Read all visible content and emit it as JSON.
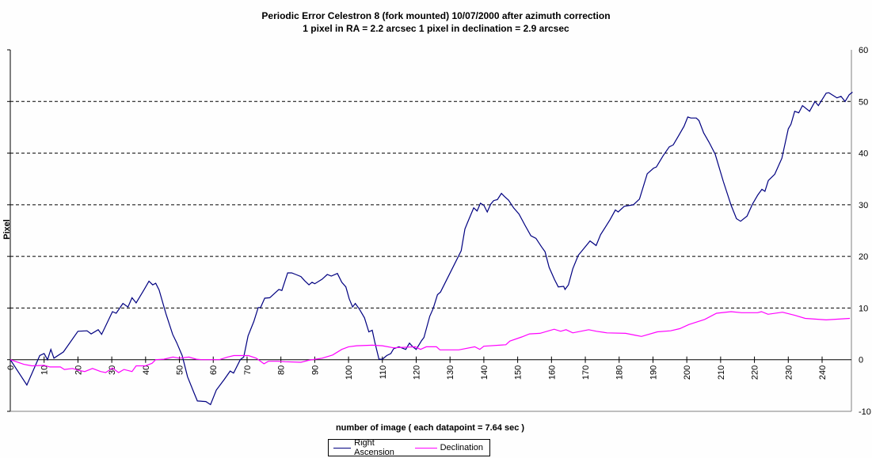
{
  "chart_data": {
    "type": "line",
    "title": "Periodic Error Celestron 8 (fork mounted) 10/07/2000 after azimuth correction",
    "subtitle": "1 pixel in RA = 2.2 arcsec   1 pixel in declination = 2.9 arcsec",
    "xlabel": "number of image ( each datapoint = 7.64 sec )",
    "ylabel": "Pixel",
    "xlim": [
      0,
      249
    ],
    "ylim": [
      -10,
      60
    ],
    "xticks": [
      0,
      10,
      20,
      30,
      40,
      50,
      60,
      70,
      80,
      90,
      100,
      110,
      120,
      130,
      140,
      150,
      160,
      170,
      180,
      190,
      200,
      210,
      220,
      230,
      240
    ],
    "yticks": [
      -10,
      0,
      10,
      20,
      30,
      40,
      50,
      60
    ],
    "grid": "horizontal dashed",
    "legend": "bottom-center",
    "series": [
      {
        "name": "Right Ascension",
        "color": "#000080",
        "x": [
          0,
          4.9,
          8.7,
          10,
          11,
          12,
          12.9,
          15.7,
          20,
          22.7,
          23.9,
          26,
          27,
          30.2,
          31.3,
          33.3,
          34.8,
          36,
          37.2,
          39.5,
          41,
          42.1,
          43,
          44,
          46,
          48,
          49.2,
          50.8,
          52.4,
          54.3,
          55.3,
          57.8,
          59.2,
          60.9,
          63.3,
          65,
          66,
          68,
          69,
          70.3,
          72,
          73.3,
          74,
          75.2,
          76.7,
          79.4,
          80.3,
          82,
          83.2,
          84.4,
          85.9,
          87,
          88.3,
          89.2,
          90,
          92.2,
          93.7,
          94.9,
          96.7,
          98,
          99.2,
          100.2,
          101.2,
          102,
          103.2,
          104.7,
          106,
          107,
          107.8,
          109,
          110,
          111.3,
          112.5,
          113.3,
          114.9,
          116.9,
          118,
          119,
          120,
          121.6,
          122.3,
          124,
          125,
          126.3,
          127.2,
          130.4,
          133.3,
          134.4,
          135.2,
          137,
          138,
          139,
          140,
          141,
          142,
          142.9,
          144,
          145.2,
          146.1,
          147.3,
          148.8,
          150.4,
          152.2,
          153.9,
          155.4,
          157,
          158.1,
          159.3,
          160.9,
          162,
          163.6,
          164,
          165,
          166.3,
          167.9,
          169.4,
          171.4,
          173.2,
          174.5,
          177.3,
          178.9,
          179.7,
          181.5,
          184.2,
          186,
          188.3,
          190.2,
          191,
          193,
          194.8,
          196,
          197.6,
          199.2,
          200.3,
          201.2,
          202.8,
          203.6,
          205,
          206.6,
          208.4,
          210.8,
          213.1,
          214.7,
          215.9,
          217.8,
          219.4,
          221,
          222.2,
          223.1,
          224.1,
          226,
          228.1,
          230,
          230.8,
          231.9,
          233.1,
          234.2,
          236.3,
          237.9,
          238.9,
          241.2,
          242,
          244.4,
          245.6,
          246.8,
          248,
          249
        ],
        "y": [
          0,
          -4.9,
          0.8,
          1.2,
          0,
          2,
          0.3,
          1.5,
          5.5,
          5.6,
          5,
          5.8,
          4.9,
          9.3,
          9,
          10.9,
          10.2,
          12,
          11,
          13.5,
          15.2,
          14.5,
          14.8,
          13.5,
          8.9,
          4.9,
          3.3,
          0.8,
          -3.3,
          -6.4,
          -8,
          -8.1,
          -8.7,
          -5.9,
          -3.8,
          -2.2,
          -2.6,
          0,
          0.5,
          4.6,
          7.4,
          10.1,
          10.1,
          11.9,
          12,
          13.6,
          13.4,
          16.8,
          16.8,
          16.5,
          16.1,
          15.3,
          14.5,
          15,
          14.7,
          15.6,
          16.5,
          16.2,
          16.7,
          15,
          14.1,
          11.8,
          10.2,
          10.9,
          9.8,
          8.1,
          5.4,
          5.7,
          3.3,
          0.1,
          0.1,
          0.8,
          1.2,
          2.1,
          2.5,
          2,
          3.2,
          2.5,
          2,
          3.7,
          4.3,
          8.4,
          9.9,
          12.6,
          13.1,
          17.3,
          21.1,
          25.3,
          26.6,
          29.4,
          28.8,
          30.3,
          29.9,
          28.6,
          30.1,
          30.8,
          31,
          32.2,
          31.6,
          30.9,
          29.4,
          28.2,
          26,
          24,
          23.5,
          21.9,
          20.9,
          17.9,
          15.5,
          14.1,
          14.2,
          13.6,
          14.5,
          17.6,
          20.2,
          21.4,
          23,
          22.1,
          24.2,
          27.1,
          29,
          28.6,
          29.7,
          30,
          31.1,
          36,
          37.1,
          37.3,
          39.5,
          41.2,
          41.6,
          43.4,
          45.2,
          47,
          46.8,
          46.8,
          46.3,
          43.9,
          42.1,
          39.8,
          34.5,
          29.9,
          27.3,
          26.8,
          27.8,
          30.1,
          31.9,
          33,
          32.6,
          34.7,
          35.9,
          39,
          44.7,
          45.6,
          48.1,
          47.8,
          49.2,
          48.1,
          50,
          49.2,
          51.6,
          51.7,
          50.7,
          51,
          50,
          51.3,
          51.8
        ]
      },
      {
        "name": "Declination",
        "color": "#FF00FF",
        "x": [
          0,
          4,
          6.4,
          10,
          11.7,
          14.8,
          16,
          18.4,
          20.4,
          22,
          24.3,
          26.7,
          28.2,
          30.2,
          32,
          33.6,
          36,
          37.2,
          39.9,
          41.9,
          43,
          45.4,
          48.1,
          50,
          52.8,
          55,
          56.7,
          61.8,
          64.2,
          66.1,
          70.4,
          72.7,
          75,
          76.3,
          79,
          81.3,
          85.9,
          88.3,
          92.2,
          95.3,
          98,
          100,
          102.4,
          107,
          110,
          113.3,
          119.7,
          121.3,
          123,
          126,
          127,
          132.6,
          137.3,
          138.8,
          140,
          146.5,
          147.7,
          151.2,
          153.5,
          156.6,
          160.8,
          162.7,
          164.3,
          166.3,
          171,
          173.3,
          176.4,
          181.9,
          185,
          186.6,
          191.3,
          195.2,
          197.9,
          200.6,
          205.3,
          208.8,
          213.1,
          216.2,
          220.9,
          222.1,
          224,
          228.3,
          231.9,
          235,
          241.2,
          248.2
        ],
        "y": [
          0,
          -0.9,
          -1.2,
          -1.1,
          -1.4,
          -1.4,
          -1.9,
          -1.7,
          -2.1,
          -2.3,
          -1.7,
          -2.3,
          -2.5,
          -1.6,
          -2.5,
          -1.9,
          -2.3,
          -1.2,
          -1.2,
          -0.7,
          0,
          0.1,
          0.5,
          0.3,
          0.5,
          0.1,
          0,
          0,
          0.5,
          0.8,
          0.8,
          0.3,
          -0.8,
          -0.3,
          -0.3,
          -0.4,
          -0.5,
          -0.1,
          0.3,
          0.9,
          2,
          2.5,
          2.7,
          2.8,
          2.7,
          2.3,
          2.5,
          2,
          2.5,
          2.5,
          1.9,
          1.9,
          2.5,
          2,
          2.6,
          2.9,
          3.6,
          4.4,
          5,
          5.1,
          5.9,
          5.5,
          5.8,
          5.2,
          5.8,
          5.5,
          5.2,
          5.1,
          4.7,
          4.5,
          5.4,
          5.6,
          6,
          6.8,
          7.8,
          9,
          9.3,
          9.1,
          9.1,
          9.3,
          8.8,
          9.2,
          8.6,
          8,
          7.7,
          8
        ]
      }
    ]
  }
}
